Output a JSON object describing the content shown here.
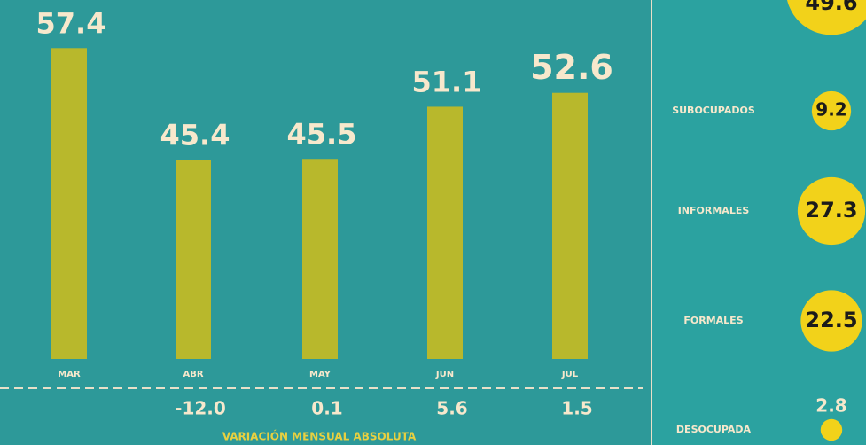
{
  "chart_data": [
    {
      "type": "bar",
      "categories": [
        "MAR",
        "ABR",
        "MAY",
        "JUN",
        "JUL"
      ],
      "values": [
        57.4,
        45.4,
        45.5,
        51.1,
        52.6
      ],
      "color": "#b8b82c",
      "ylim": [
        24,
        60
      ],
      "variation": {
        "label": "VARIACIÓN MENSUAL ABSOLUTA",
        "values": [
          null,
          -12,
          0.1,
          5.6,
          1.5
        ],
        "value_labels": [
          null,
          "-12.0",
          "0.1",
          "5.6",
          "1.5"
        ]
      }
    },
    {
      "type": "bubble",
      "categories": [
        null,
        "SUBOCUPADOS",
        "INFORMALES",
        "FORMALES",
        "DESOCUPADA"
      ],
      "values": [
        49.6,
        9.2,
        27.3,
        22.5,
        2.8
      ],
      "color": "#f2d21a"
    }
  ]
}
